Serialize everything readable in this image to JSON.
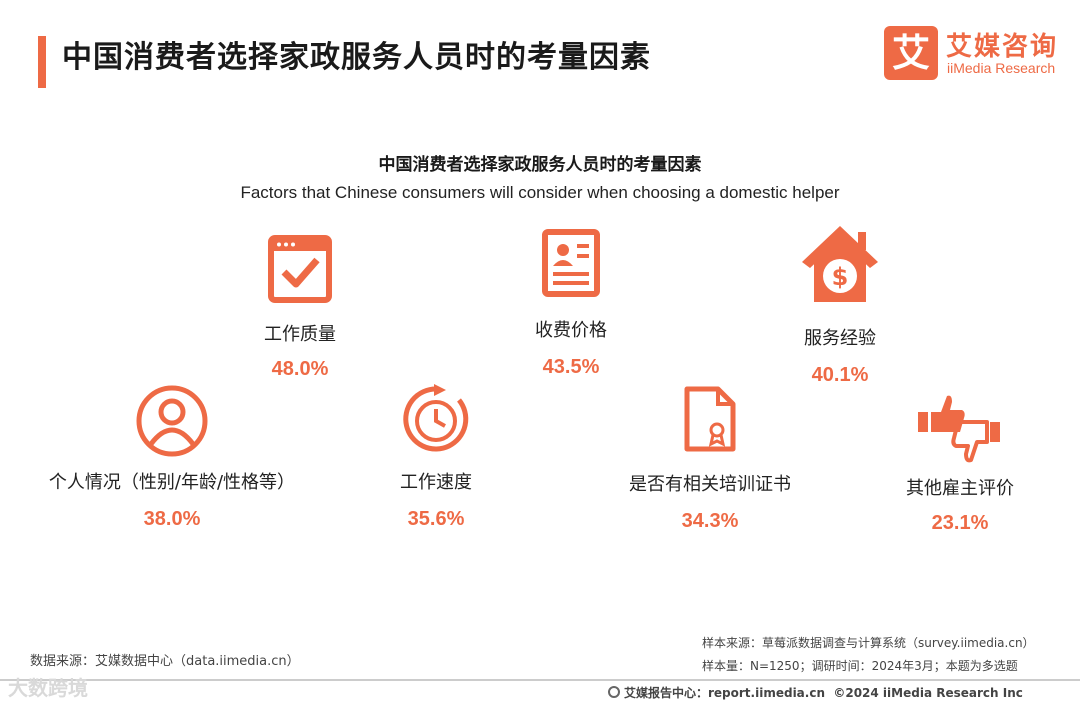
{
  "header": {
    "title": "中国消费者选择家政服务人员时的考量因素",
    "logo_mark": "艾",
    "logo_cn": "艾媒咨询",
    "logo_en": "iiMedia Research"
  },
  "chart_data": {
    "type": "bar",
    "title": "中国消费者选择家政服务人员时的考量因素",
    "subtitle": "Factors that Chinese consumers will consider when choosing a domestic helper",
    "categories": [
      "工作质量",
      "收费价格",
      "服务经验",
      "个人情况（性别/年龄/性格等）",
      "工作速度",
      "是否有相关培训证书",
      "其他雇主评价"
    ],
    "values": [
      48.0,
      43.5,
      40.1,
      38.0,
      35.6,
      34.3,
      23.1
    ],
    "value_labels": [
      "48.0%",
      "43.5%",
      "40.1%",
      "38.0%",
      "35.6%",
      "34.3%",
      "23.1%"
    ],
    "unit": "%",
    "icons": [
      "checkbox-icon",
      "profile-card-icon",
      "house-dollar-icon",
      "person-icon",
      "clock-icon",
      "certificate-icon",
      "thumbs-icon"
    ],
    "accent_color": "#ee6a45"
  },
  "footer": {
    "data_source": "数据来源：艾媒数据中心（data.iimedia.cn）",
    "sample_source": "样本来源：草莓派数据调查与计算系统（survey.iimedia.cn）",
    "sample_info": "样本量：N=1250；调研时间：2024年3月；本题为多选题",
    "report_center": "艾媒报告中心：report.iimedia.cn",
    "copyright": "©2024  iiMedia Research  Inc",
    "watermark": "大数跨境"
  }
}
